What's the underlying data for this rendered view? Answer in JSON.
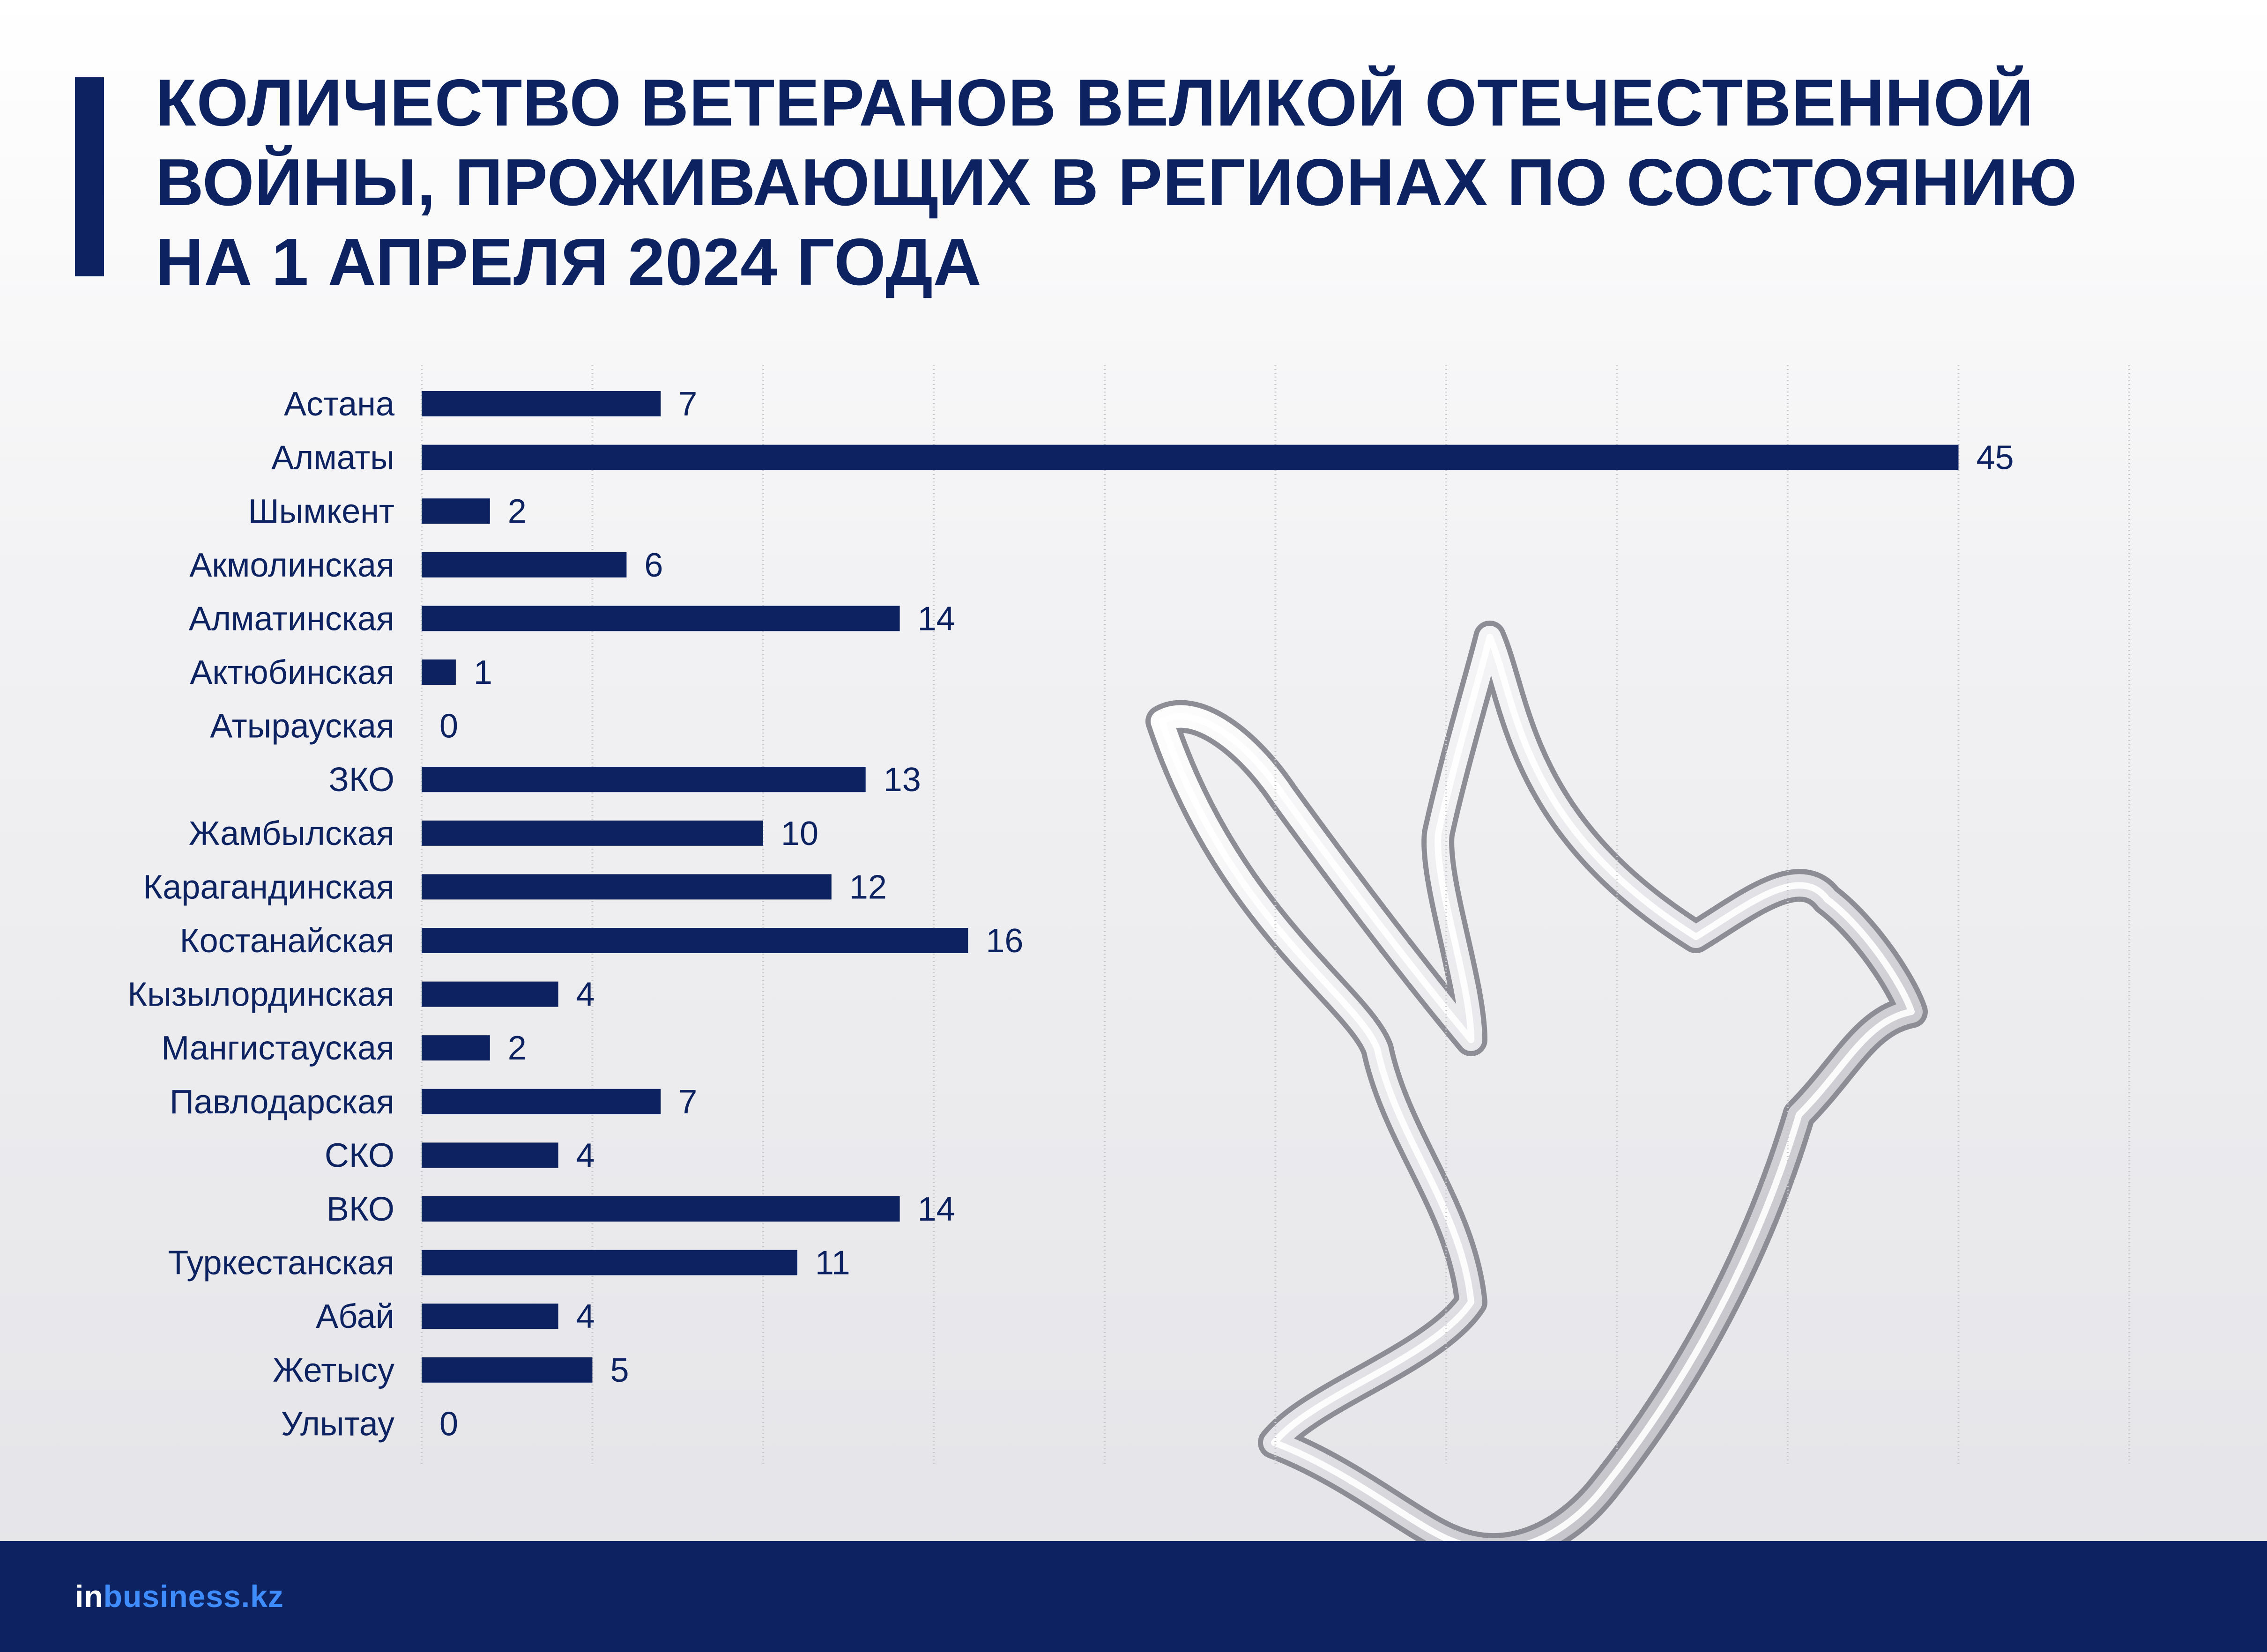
{
  "title_lines": [
    "КОЛИЧЕСТВО ВЕТЕРАНОВ ВЕЛИКОЙ ОТЕЧЕСТВЕННОЙ",
    "ВОЙНЫ, ПРОЖИВАЮЩИХ В РЕГИОНАХ ПО СОСТОЯНИЮ",
    "НА 1 АПРЕЛЯ 2024 ГОДА"
  ],
  "logo": {
    "prefix": "in",
    "rest": "business.kz"
  },
  "colors": {
    "bar": "#0d2260",
    "grid": "#c8c8cc",
    "footer": "#0d2260",
    "logo_accent": "#3f8cff"
  },
  "chart_data": {
    "type": "bar",
    "orientation": "horizontal",
    "categories": [
      "Астана",
      "Алматы",
      "Шымкент",
      "Акмолинская",
      "Алматинская",
      "Актюбинская",
      "Атырауская",
      "ЗКО",
      "Жамбылская",
      "Карагандинская",
      "Костанайская",
      "Кызылординская",
      "Мангистауская",
      "Павлодарская",
      "СКО",
      "ВКО",
      "Туркестанская",
      "Абай",
      "Жетысу",
      "Улытау"
    ],
    "values": [
      7,
      45,
      2,
      6,
      14,
      1,
      0,
      13,
      10,
      12,
      16,
      4,
      2,
      7,
      4,
      14,
      11,
      4,
      5,
      0
    ],
    "xlim": [
      0,
      50
    ],
    "grid": true,
    "data_labels": true
  }
}
